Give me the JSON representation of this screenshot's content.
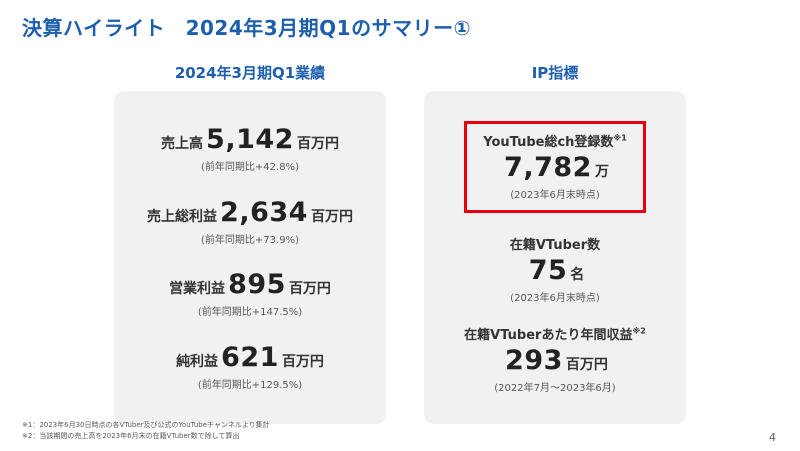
{
  "page": {
    "title": "決算ハイライト　2024年3月期Q1のサマリー①",
    "page_number": "4"
  },
  "left_section": {
    "header": "2024年3月期Q1業績",
    "metrics": [
      {
        "label": "売上高",
        "value": "5,142",
        "unit": "百万円",
        "note": "(前年同期比+42.8%)"
      },
      {
        "label": "売上総利益",
        "value": "2,634",
        "unit": "百万円",
        "note": "(前年同期比+73.9%)"
      },
      {
        "label": "営業利益",
        "value": "895",
        "unit": "百万円",
        "note": "(前年同期比+147.5%)"
      },
      {
        "label": "純利益",
        "value": "621",
        "unit": "百万円",
        "note": "(前年同期比+129.5%)"
      }
    ]
  },
  "right_section": {
    "header": "IP指標",
    "metrics": [
      {
        "label": "YouTube総ch登録数",
        "sup": "※1",
        "value": "7,782",
        "unit": "万",
        "note": "(2023年6月末時点)"
      },
      {
        "label": "在籍VTuber数",
        "sup": "",
        "value": "75",
        "unit": "名",
        "note": "(2023年6月末時点)"
      },
      {
        "label": "在籍VTuberあたり年間収益",
        "sup": "※2",
        "value": "293",
        "unit": "百万円",
        "note": "(2022年7月～2023年6月)"
      }
    ]
  },
  "footnotes": [
    "※1：2023年6月30日時点の各VTuber及び公式のYouTubeチャンネルより集計",
    "※2：当該期間の売上高を2023年6月末の在籍VTuber数で除して算出"
  ],
  "colors": {
    "accent_blue": "#1E5FAD",
    "highlight_red": "#E60012",
    "card_background": "#F1F1F2"
  }
}
